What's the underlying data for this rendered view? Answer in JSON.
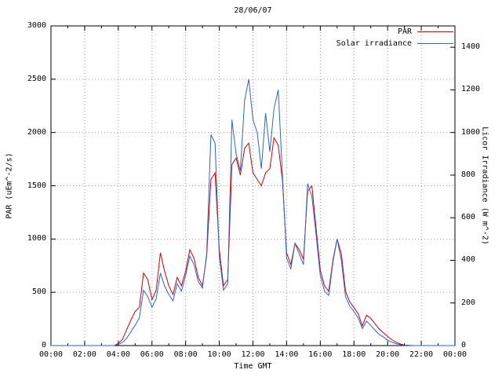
{
  "chart_data": {
    "type": "line",
    "title": "28/06/07",
    "xlabel": "Time GMT",
    "ylabel": "PAR (uEm^-2/s)",
    "y2label": "Licor Irradiance (W m^-2)",
    "xlim": [
      0,
      24
    ],
    "ylim": [
      0,
      3000
    ],
    "y2lim": [
      0,
      1500
    ],
    "grid": true,
    "legend_position": "top-right",
    "x_ticks": {
      "hours": [
        0,
        2,
        4,
        6,
        8,
        10,
        12,
        14,
        16,
        18,
        20,
        22,
        24
      ],
      "labels": [
        "00:00",
        "02:00",
        "04:00",
        "06:00",
        "08:00",
        "10:00",
        "12:00",
        "14:00",
        "16:00",
        "18:00",
        "20:00",
        "22:00",
        "00:00"
      ]
    },
    "y_ticks": [
      0,
      500,
      1000,
      1500,
      2000,
      2500,
      3000
    ],
    "y2_ticks": [
      0,
      200,
      400,
      600,
      800,
      1000,
      1200,
      1400
    ],
    "series": [
      {
        "name": "PAR",
        "color": "#cc0000",
        "axis": "left"
      },
      {
        "name": "Solar irradiance",
        "color": "#2e64c8",
        "axis": "right"
      }
    ],
    "points_note": "triplets: [hour, PAR uEm^-2/s (left axis), solar irradiance W m^-2 (right axis)]",
    "points": [
      [
        0,
        0,
        0
      ],
      [
        3.75,
        0,
        0
      ],
      [
        4.0,
        20,
        5
      ],
      [
        4.25,
        60,
        15
      ],
      [
        4.5,
        150,
        35
      ],
      [
        4.75,
        240,
        65
      ],
      [
        5.0,
        320,
        95
      ],
      [
        5.25,
        360,
        130
      ],
      [
        5.5,
        680,
        260
      ],
      [
        5.75,
        620,
        230
      ],
      [
        6.0,
        430,
        180
      ],
      [
        6.25,
        520,
        220
      ],
      [
        6.5,
        870,
        340
      ],
      [
        6.75,
        700,
        280
      ],
      [
        7.0,
        560,
        240
      ],
      [
        7.25,
        480,
        210
      ],
      [
        7.5,
        640,
        290
      ],
      [
        7.75,
        560,
        255
      ],
      [
        8.0,
        700,
        330
      ],
      [
        8.25,
        900,
        420
      ],
      [
        8.5,
        820,
        380
      ],
      [
        8.75,
        640,
        300
      ],
      [
        9.0,
        560,
        270
      ],
      [
        9.25,
        840,
        430
      ],
      [
        9.5,
        1560,
        990
      ],
      [
        9.75,
        1620,
        950
      ],
      [
        10.0,
        900,
        420
      ],
      [
        10.25,
        560,
        260
      ],
      [
        10.5,
        620,
        290
      ],
      [
        10.75,
        1700,
        1060
      ],
      [
        11.0,
        1760,
        900
      ],
      [
        11.25,
        1600,
        820
      ],
      [
        11.5,
        1850,
        1150
      ],
      [
        11.75,
        1900,
        1250
      ],
      [
        12.0,
        1620,
        1060
      ],
      [
        12.25,
        1560,
        1000
      ],
      [
        12.5,
        1500,
        830
      ],
      [
        12.75,
        1620,
        1090
      ],
      [
        13.0,
        1660,
        910
      ],
      [
        13.25,
        1950,
        1110
      ],
      [
        13.5,
        1880,
        1200
      ],
      [
        13.75,
        1550,
        800
      ],
      [
        14.0,
        870,
        410
      ],
      [
        14.25,
        760,
        360
      ],
      [
        14.5,
        960,
        480
      ],
      [
        14.75,
        900,
        430
      ],
      [
        15.0,
        810,
        380
      ],
      [
        15.25,
        1450,
        760
      ],
      [
        15.5,
        1500,
        700
      ],
      [
        15.75,
        1100,
        520
      ],
      [
        16.0,
        710,
        330
      ],
      [
        16.25,
        560,
        255
      ],
      [
        16.5,
        510,
        235
      ],
      [
        16.75,
        800,
        390
      ],
      [
        17.0,
        1000,
        500
      ],
      [
        17.25,
        860,
        400
      ],
      [
        17.5,
        510,
        230
      ],
      [
        17.75,
        410,
        185
      ],
      [
        18.0,
        355,
        160
      ],
      [
        18.25,
        300,
        130
      ],
      [
        18.5,
        185,
        80
      ],
      [
        18.75,
        285,
        115
      ],
      [
        19.0,
        255,
        95
      ],
      [
        19.25,
        205,
        72
      ],
      [
        19.5,
        155,
        52
      ],
      [
        19.75,
        120,
        40
      ],
      [
        20.0,
        85,
        26
      ],
      [
        20.25,
        55,
        16
      ],
      [
        20.5,
        32,
        9
      ],
      [
        20.75,
        15,
        4
      ],
      [
        21.0,
        6,
        2
      ],
      [
        21.25,
        2,
        1
      ],
      [
        21.5,
        0,
        0
      ],
      [
        24,
        0,
        0
      ]
    ]
  }
}
